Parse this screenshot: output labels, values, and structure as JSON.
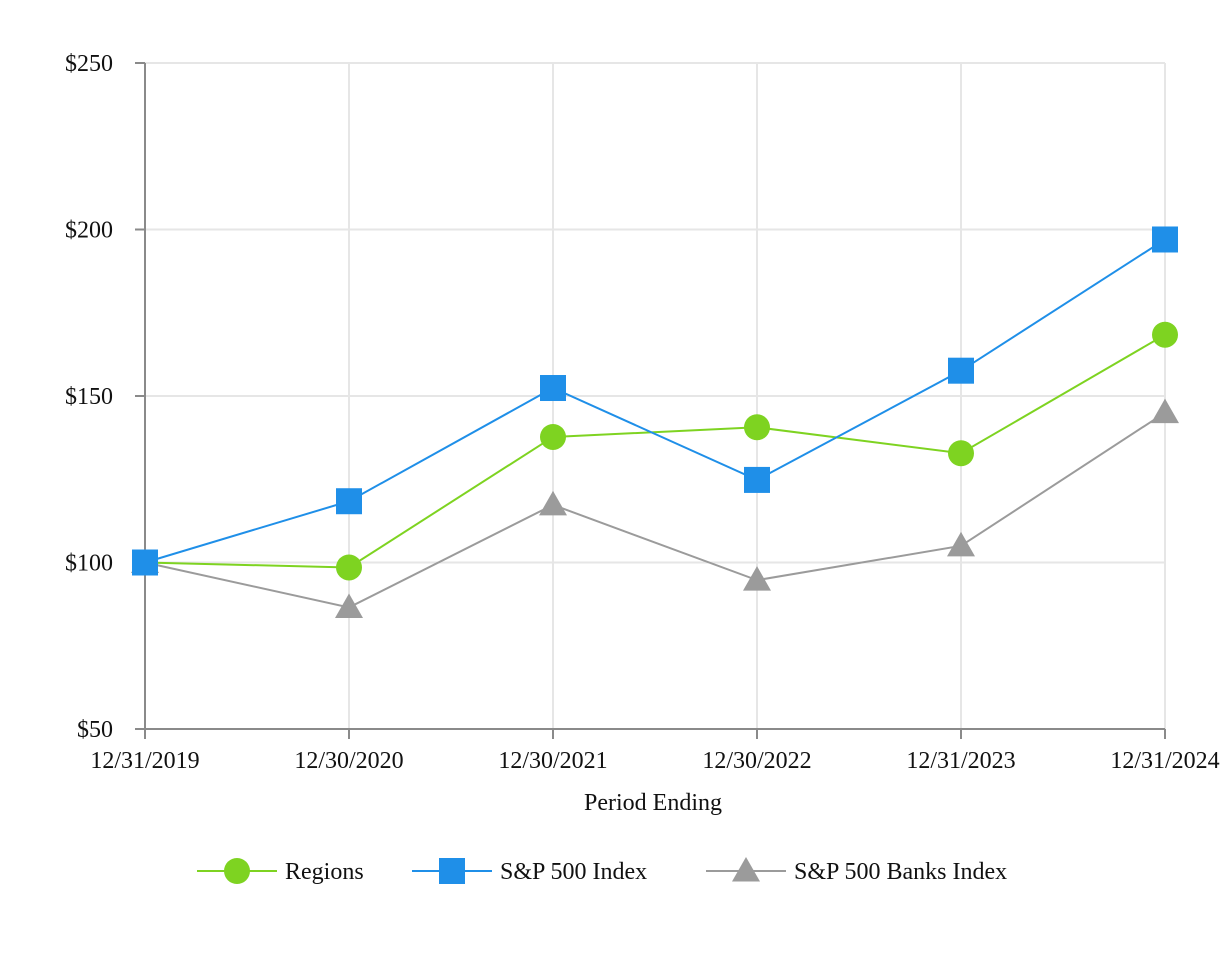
{
  "chart_data": {
    "type": "line",
    "title": "",
    "xlabel": "Period Ending",
    "ylabel": "",
    "categories": [
      "12/31/2019",
      "12/30/2020",
      "12/30/2021",
      "12/30/2022",
      "12/31/2023",
      "12/31/2024"
    ],
    "y_ticks": [
      50,
      100,
      150,
      200,
      250
    ],
    "y_tick_labels": [
      "$50",
      "$100",
      "$150",
      "$200",
      "$250"
    ],
    "ylim": [
      50,
      250
    ],
    "grid": true,
    "legend_position": "bottom-center",
    "series": [
      {
        "name": "Regions",
        "marker": "circle",
        "color": "#7ed321",
        "values": [
          100.0,
          98.5,
          137.7,
          140.6,
          132.8,
          168.4
        ]
      },
      {
        "name": "S&P 500 Index",
        "marker": "square",
        "color": "#1f8fe8",
        "values": [
          100.0,
          118.4,
          152.4,
          124.8,
          157.6,
          197.0
        ]
      },
      {
        "name": "S&P 500 Banks Index",
        "marker": "triangle",
        "color": "#9b9b9b",
        "values": [
          100.0,
          86.5,
          117.3,
          94.7,
          105.0,
          145.0
        ]
      }
    ]
  }
}
